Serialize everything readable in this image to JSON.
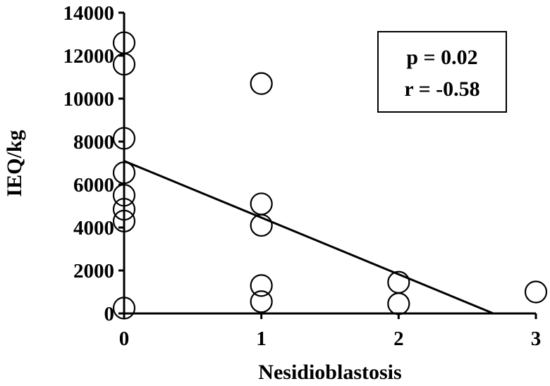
{
  "chart_data": {
    "type": "scatter",
    "xlabel": "Nesidioblastosis",
    "ylabel": "IEQ/kg",
    "xlim": [
      0,
      3
    ],
    "ylim": [
      0,
      14000
    ],
    "x_ticks": [
      0,
      1,
      2,
      3
    ],
    "y_ticks": [
      0,
      2000,
      4000,
      6000,
      8000,
      10000,
      12000,
      14000
    ],
    "grid": false,
    "legend": "none",
    "points": [
      {
        "x": 0,
        "y": 12600
      },
      {
        "x": 0,
        "y": 11600
      },
      {
        "x": 0,
        "y": 8150
      },
      {
        "x": 0,
        "y": 6550
      },
      {
        "x": 0,
        "y": 5500
      },
      {
        "x": 0,
        "y": 4850
      },
      {
        "x": 0,
        "y": 4300
      },
      {
        "x": 0,
        "y": 250
      },
      {
        "x": 1,
        "y": 10700
      },
      {
        "x": 1,
        "y": 5100
      },
      {
        "x": 1,
        "y": 4100
      },
      {
        "x": 1,
        "y": 1300
      },
      {
        "x": 1,
        "y": 550
      },
      {
        "x": 2,
        "y": 1450
      },
      {
        "x": 2,
        "y": 450
      },
      {
        "x": 3,
        "y": 1000
      }
    ],
    "regression_line": {
      "x": [
        0,
        2.69
      ],
      "y": [
        7100,
        0
      ]
    },
    "annotation": {
      "p_text": "p = 0.02",
      "r_text": "r = -0.58"
    },
    "colors": {
      "marker_stroke": "#000000",
      "line": "#000000",
      "background": "#ffffff"
    }
  }
}
